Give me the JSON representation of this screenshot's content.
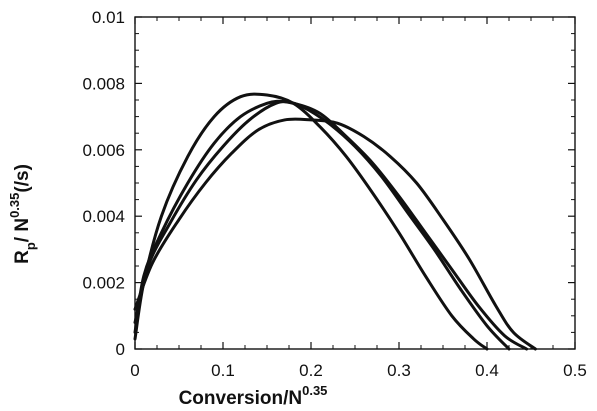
{
  "chart_data": {
    "type": "line",
    "title": "",
    "xlabel": "Conversion/N",
    "xlabel_superscript": "0.35",
    "ylabel_main": "R",
    "ylabel_subscript": "p",
    "ylabel_middle": "/ N",
    "ylabel_superscript": "0.35",
    "ylabel_unit": "(/s)",
    "xlim": [
      0,
      0.5
    ],
    "ylim": [
      0,
      0.01
    ],
    "x_ticks": [
      0,
      0.1,
      0.2,
      0.3,
      0.4,
      0.5
    ],
    "x_tick_labels": [
      "0",
      "0.1",
      "0.2",
      "0.3",
      "0.4",
      "0.5"
    ],
    "y_ticks": [
      0,
      0.002,
      0.004,
      0.006,
      0.008,
      0.01
    ],
    "y_tick_labels": [
      "0",
      "0.002",
      "0.004",
      "0.006",
      "0.008",
      "0.01"
    ],
    "grid": false,
    "line_color": "#111111",
    "series": [
      {
        "x": [
          0,
          0.01,
          0.03,
          0.06,
          0.09,
          0.12,
          0.15,
          0.18,
          0.21,
          0.24,
          0.27,
          0.3,
          0.33,
          0.36,
          0.385,
          0.4
        ],
        "y": [
          0.0003,
          0.002,
          0.004,
          0.0058,
          0.007,
          0.0076,
          0.00765,
          0.0074,
          0.0067,
          0.0058,
          0.0047,
          0.0035,
          0.0022,
          0.001,
          0.0003,
          0
        ]
      },
      {
        "x": [
          0,
          0.01,
          0.03,
          0.06,
          0.09,
          0.12,
          0.15,
          0.17,
          0.19,
          0.22,
          0.25,
          0.28,
          0.31,
          0.34,
          0.37,
          0.4,
          0.425
        ],
        "y": [
          0.0005,
          0.0022,
          0.0035,
          0.005,
          0.0062,
          0.007,
          0.0074,
          0.00745,
          0.0073,
          0.0068,
          0.0061,
          0.0052,
          0.0041,
          0.003,
          0.0018,
          0.0007,
          0
        ]
      },
      {
        "x": [
          0,
          0.015,
          0.04,
          0.07,
          0.1,
          0.13,
          0.16,
          0.18,
          0.21,
          0.24,
          0.27,
          0.3,
          0.33,
          0.36,
          0.39,
          0.42,
          0.445
        ],
        "y": [
          0.0008,
          0.0025,
          0.0038,
          0.0051,
          0.0061,
          0.0069,
          0.0074,
          0.0074,
          0.0071,
          0.0064,
          0.0056,
          0.0046,
          0.0035,
          0.0024,
          0.0013,
          0.0004,
          0
        ]
      },
      {
        "x": [
          0,
          0.02,
          0.05,
          0.08,
          0.11,
          0.14,
          0.17,
          0.2,
          0.23,
          0.26,
          0.29,
          0.32,
          0.35,
          0.38,
          0.41,
          0.43,
          0.455
        ],
        "y": [
          0.0012,
          0.0026,
          0.0039,
          0.005,
          0.0059,
          0.0066,
          0.0069,
          0.0069,
          0.0068,
          0.0064,
          0.0058,
          0.005,
          0.0039,
          0.0027,
          0.0013,
          0.0005,
          0
        ]
      }
    ]
  }
}
